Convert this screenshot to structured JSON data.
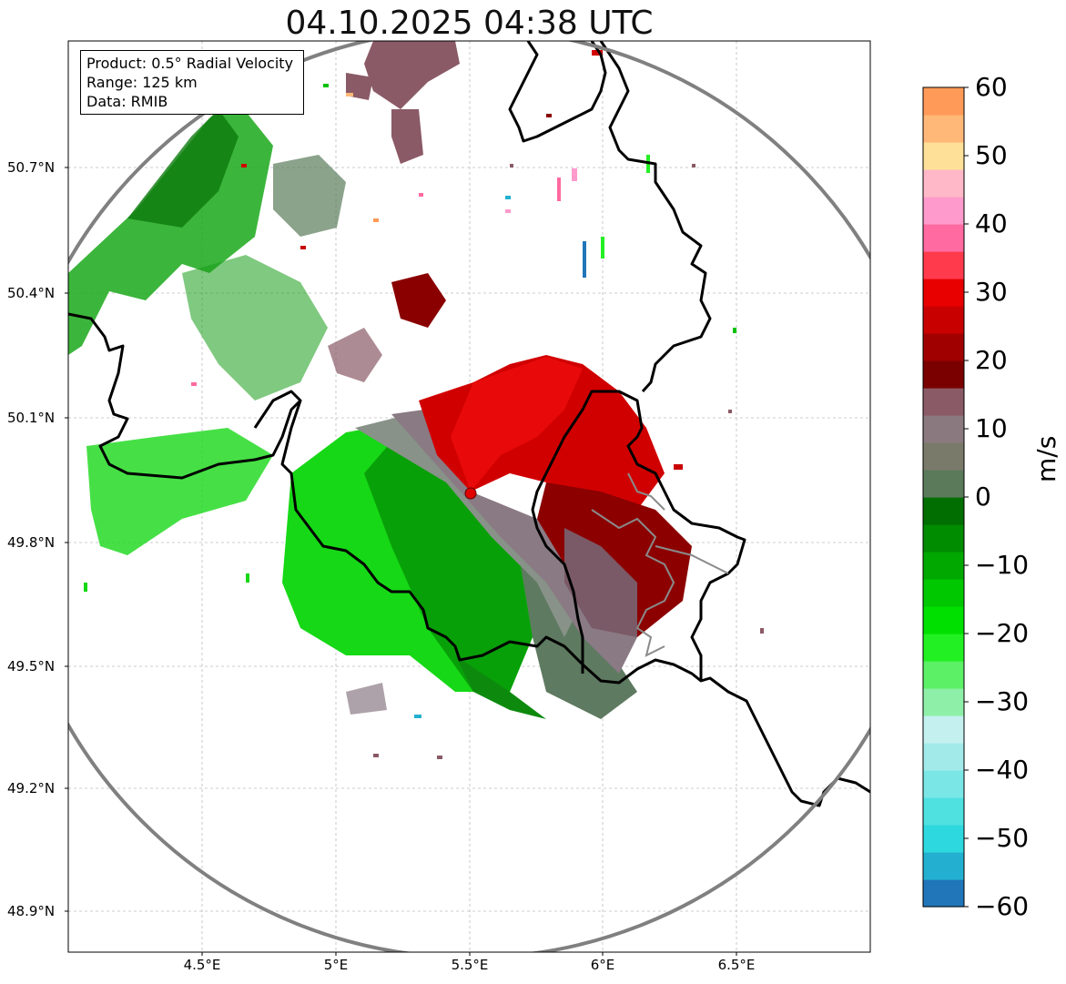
{
  "title": "04.10.2025 04:38 UTC",
  "info": {
    "product": "Product: 0.5° Radial Velocity",
    "range": "Range: 125 km",
    "data": "Data: RMIB"
  },
  "lat_labels": [
    "50.7°N",
    "50.4°N",
    "50.1°N",
    "49.8°N",
    "49.5°N",
    "49.2°N",
    "48.9°N"
  ],
  "lon_labels": [
    "4.5°E",
    "5°E",
    "5.5°E",
    "6°E",
    "6.5°E"
  ],
  "colorbar": {
    "unit": "m/s",
    "min": -60,
    "max": 60,
    "tick_labels": [
      "60",
      "50",
      "40",
      "30",
      "20",
      "10",
      "0",
      "−10",
      "−20",
      "−30",
      "−40",
      "−50",
      "−60"
    ],
    "colors": [
      "#2076b8",
      "#23b0d0",
      "#2dd8de",
      "#4fe0e0",
      "#7ae6e6",
      "#a2eaea",
      "#c4f0f0",
      "#8ef0a8",
      "#5cf066",
      "#22f022",
      "#00e000",
      "#00c800",
      "#00a800",
      "#008c00",
      "#006e00",
      "#5a7a5a",
      "#7a7a6a",
      "#8a7a80",
      "#8a5a66",
      "#7a0000",
      "#a00000",
      "#c80000",
      "#e80000",
      "#ff3a4c",
      "#ff6aa0",
      "#ff9acc",
      "#ffb8c8",
      "#ffe098",
      "#ffb878",
      "#ff9a58"
    ]
  },
  "radar_site": {
    "lon": 5.5,
    "lat": 49.91,
    "color": "#e00000"
  }
}
